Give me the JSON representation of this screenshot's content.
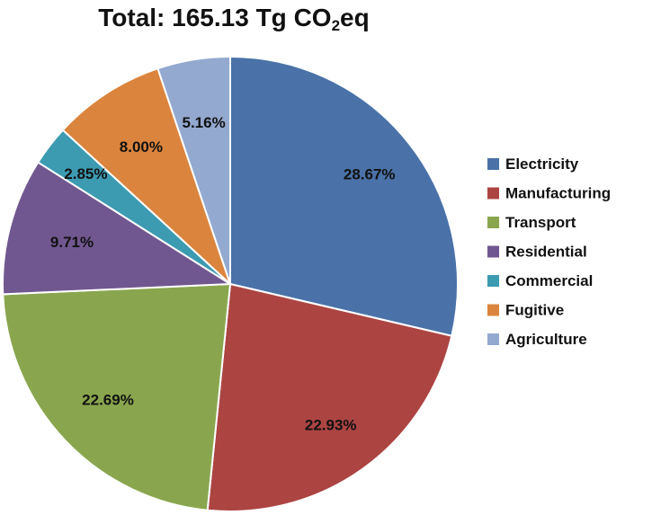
{
  "chart_data": {
    "type": "pie",
    "title_prefix": "Total: 165.13 Tg CO",
    "title_subscript": "2",
    "title_suffix": "eq",
    "slices": [
      {
        "name": "Electricity",
        "value": 28.67,
        "label": "28.67%",
        "color": "#4A72A8"
      },
      {
        "name": "Manufacturing",
        "value": 22.93,
        "label": "22.93%",
        "color": "#AC4442"
      },
      {
        "name": "Transport",
        "value": 22.69,
        "label": "22.69%",
        "color": "#89A64E"
      },
      {
        "name": "Residential",
        "value": 9.71,
        "label": "9.71%",
        "color": "#71578F"
      },
      {
        "name": "Commercial",
        "value": 2.85,
        "label": "2.85%",
        "color": "#3C9AB1"
      },
      {
        "name": "Fugitive",
        "value": 8.0,
        "label": "8.00%",
        "color": "#DB843D"
      },
      {
        "name": "Agriculture",
        "value": 5.16,
        "label": "5.16%",
        "color": "#93A9CF"
      }
    ],
    "legend_position": "right",
    "start_angle": "12 o'clock",
    "direction": "clockwise"
  }
}
